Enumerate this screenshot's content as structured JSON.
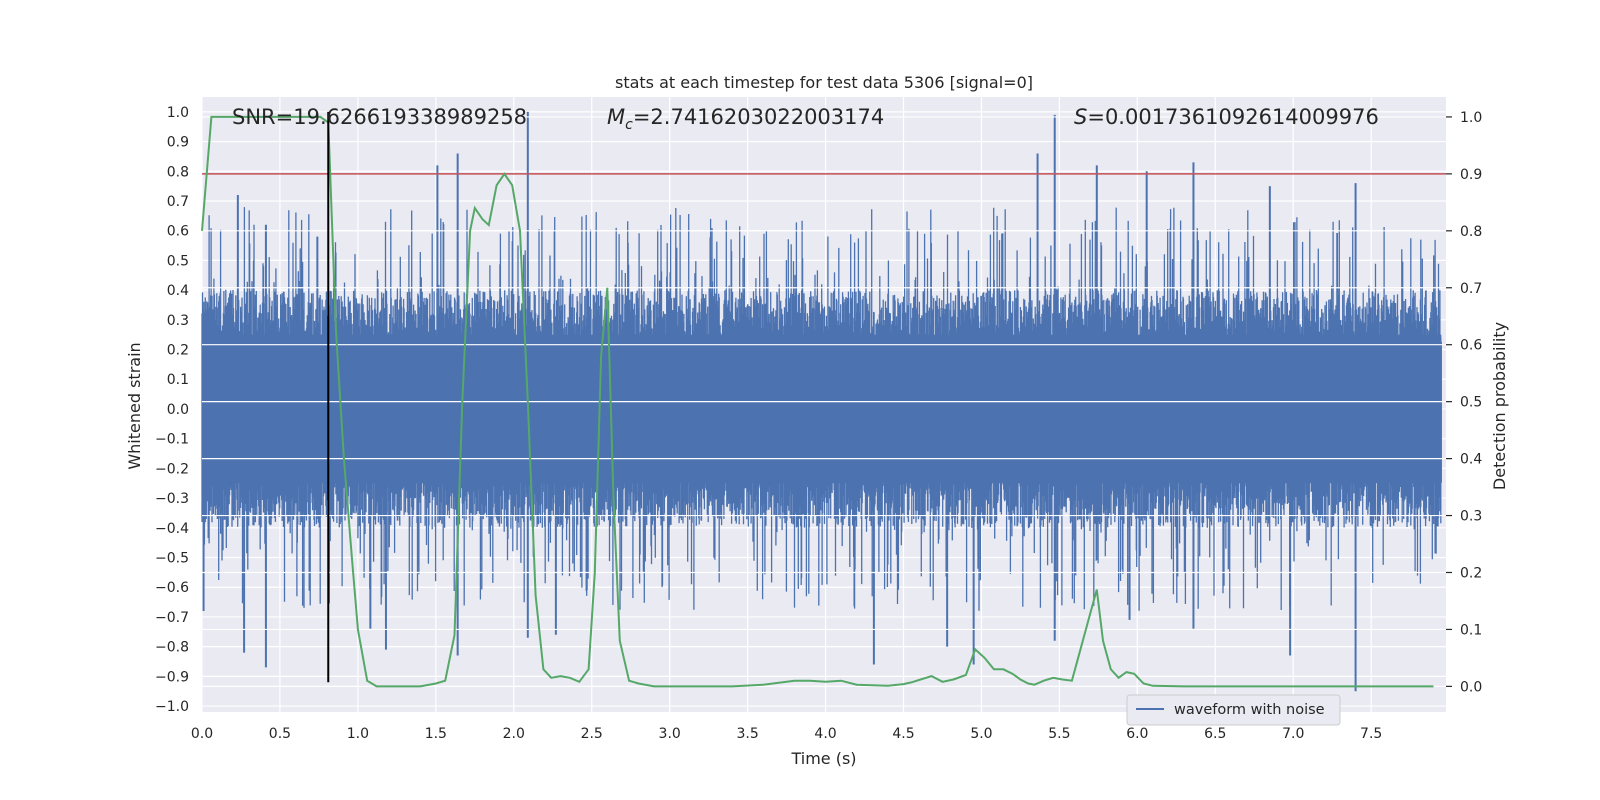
{
  "chart_data": {
    "type": "line",
    "title": "stats at each timestep for test data 5306 [signal=0]",
    "xlabel": "Time (s)",
    "ylabel": "Whitened strain",
    "ylabel_right": "Detection probability",
    "xlim": [
      0.0,
      7.98
    ],
    "ylim": [
      -1.02,
      1.05
    ],
    "ylim_right": [
      -0.045,
      1.035
    ],
    "x_ticks": [
      0.0,
      0.5,
      1.0,
      1.5,
      2.0,
      2.5,
      3.0,
      3.5,
      4.0,
      4.5,
      5.0,
      5.5,
      6.0,
      6.5,
      7.0,
      7.5
    ],
    "x_tick_labels": [
      "0.0",
      "0.5",
      "1.0",
      "1.5",
      "2.0",
      "2.5",
      "3.0",
      "3.5",
      "4.0",
      "4.5",
      "5.0",
      "5.5",
      "6.0",
      "6.5",
      "7.0",
      "7.5"
    ],
    "y_ticks": [
      1.0,
      0.9,
      0.8,
      0.7,
      0.6,
      0.5,
      0.4,
      0.3,
      0.2,
      0.1,
      0.0,
      -0.1,
      -0.2,
      -0.3,
      -0.4,
      -0.5,
      -0.6,
      -0.7,
      -0.8,
      -0.9,
      -1.0
    ],
    "y_tick_labels": [
      "1.0",
      "0.9",
      "0.8",
      "0.7",
      "0.6",
      "0.5",
      "0.4",
      "0.3",
      "0.2",
      "0.1",
      "0.0",
      "−0.1",
      "−0.2",
      "−0.3",
      "−0.4",
      "−0.5",
      "−0.6",
      "−0.7",
      "−0.8",
      "−0.9",
      "−1.0"
    ],
    "y_right_ticks": [
      1.0,
      0.9,
      0.8,
      0.7,
      0.6,
      0.5,
      0.4,
      0.3,
      0.2,
      0.1,
      0.0
    ],
    "y_right_tick_labels": [
      "1.0",
      "0.9",
      "0.8",
      "0.7",
      "0.6",
      "0.5",
      "0.4",
      "0.3",
      "0.2",
      "0.1",
      "0.0"
    ],
    "grid": true,
    "legend_placement": "lower-right",
    "annotations": {
      "snr": "SNR=19.626619338989258",
      "mc_symbol": "M",
      "mc_sub": "c",
      "mc_value": "=2.7416203022003174",
      "s_symbol": "S",
      "s_value": "=0.0017361092614009976"
    },
    "threshold": {
      "value": 0.9,
      "axis": "right",
      "color": "#c44e52"
    },
    "marker_line": {
      "x": 0.81,
      "y_from": -0.92,
      "y_to": 1.0,
      "color": "#000000"
    },
    "series": [
      {
        "name": "waveform with noise",
        "axis": "left",
        "color": "#4c72b0",
        "kind": "noise",
        "envelope": {
          "x_start": 0.0,
          "x_end": 7.95,
          "core_high": 0.4,
          "core_low": -0.4
        },
        "peaks": [
          {
            "x": 0.01,
            "y": -0.68
          },
          {
            "x": 0.23,
            "y": 0.72
          },
          {
            "x": 0.27,
            "y": -0.82
          },
          {
            "x": 0.41,
            "y": 0.62
          },
          {
            "x": 0.41,
            "y": -0.87
          },
          {
            "x": 0.74,
            "y": 0.58
          },
          {
            "x": 1.08,
            "y": -0.74
          },
          {
            "x": 1.18,
            "y": -0.81
          },
          {
            "x": 1.51,
            "y": 0.82
          },
          {
            "x": 1.64,
            "y": 0.86
          },
          {
            "x": 1.64,
            "y": -0.83
          },
          {
            "x": 2.09,
            "y": 1.0
          },
          {
            "x": 2.09,
            "y": -0.77
          },
          {
            "x": 2.27,
            "y": -0.76
          },
          {
            "x": 4.31,
            "y": -0.86
          },
          {
            "x": 4.78,
            "y": -0.8
          },
          {
            "x": 4.95,
            "y": -0.86
          },
          {
            "x": 5.36,
            "y": 0.86
          },
          {
            "x": 5.47,
            "y": 0.99
          },
          {
            "x": 5.47,
            "y": -0.78
          },
          {
            "x": 5.74,
            "y": 0.82
          },
          {
            "x": 5.95,
            "y": -0.71
          },
          {
            "x": 6.06,
            "y": 0.8
          },
          {
            "x": 6.36,
            "y": 0.83
          },
          {
            "x": 6.36,
            "y": -0.74
          },
          {
            "x": 6.85,
            "y": 0.75
          },
          {
            "x": 6.98,
            "y": -0.83
          },
          {
            "x": 7.4,
            "y": 0.76
          },
          {
            "x": 7.4,
            "y": -0.95
          }
        ]
      },
      {
        "name": "detection probability",
        "axis": "right",
        "color": "#55a868",
        "x": [
          0.0,
          0.06,
          0.12,
          0.2,
          0.3,
          0.45,
          0.6,
          0.7,
          0.76,
          0.81,
          0.86,
          0.91,
          0.96,
          1.0,
          1.06,
          1.12,
          1.2,
          1.3,
          1.4,
          1.5,
          1.56,
          1.62,
          1.67,
          1.72,
          1.75,
          1.8,
          1.84,
          1.89,
          1.94,
          1.99,
          2.04,
          2.09,
          2.14,
          2.19,
          2.24,
          2.3,
          2.36,
          2.42,
          2.48,
          2.52,
          2.56,
          2.6,
          2.64,
          2.68,
          2.74,
          2.8,
          2.9,
          3.0,
          3.2,
          3.4,
          3.6,
          3.8,
          3.9,
          4.0,
          4.1,
          4.2,
          4.4,
          4.5,
          4.55,
          4.62,
          4.68,
          4.75,
          4.82,
          4.9,
          4.96,
          5.02,
          5.08,
          5.14,
          5.2,
          5.25,
          5.3,
          5.34,
          5.4,
          5.46,
          5.52,
          5.58,
          5.63,
          5.69,
          5.74,
          5.78,
          5.83,
          5.88,
          5.93,
          5.98,
          6.04,
          6.1,
          6.3,
          6.5,
          6.8,
          7.0,
          7.2,
          7.5,
          7.7,
          7.9
        ],
        "y": [
          0.8,
          1.0,
          1.0,
          1.0,
          1.0,
          1.0,
          1.0,
          1.0,
          1.0,
          0.99,
          0.62,
          0.4,
          0.23,
          0.1,
          0.01,
          0.0,
          0.0,
          0.0,
          0.0,
          0.005,
          0.01,
          0.09,
          0.5,
          0.8,
          0.84,
          0.82,
          0.81,
          0.88,
          0.9,
          0.88,
          0.8,
          0.5,
          0.16,
          0.03,
          0.015,
          0.018,
          0.015,
          0.008,
          0.03,
          0.2,
          0.58,
          0.7,
          0.33,
          0.08,
          0.01,
          0.005,
          0.0,
          0.0,
          0.0,
          0.0,
          0.003,
          0.01,
          0.01,
          0.008,
          0.01,
          0.003,
          0.001,
          0.004,
          0.007,
          0.013,
          0.018,
          0.008,
          0.012,
          0.02,
          0.065,
          0.05,
          0.03,
          0.03,
          0.022,
          0.012,
          0.005,
          0.003,
          0.01,
          0.015,
          0.012,
          0.01,
          0.06,
          0.12,
          0.17,
          0.08,
          0.03,
          0.015,
          0.025,
          0.022,
          0.005,
          0.001,
          0.0,
          0.0,
          0.0,
          0.0,
          0.0,
          0.0,
          0.0,
          0.0
        ]
      }
    ]
  }
}
